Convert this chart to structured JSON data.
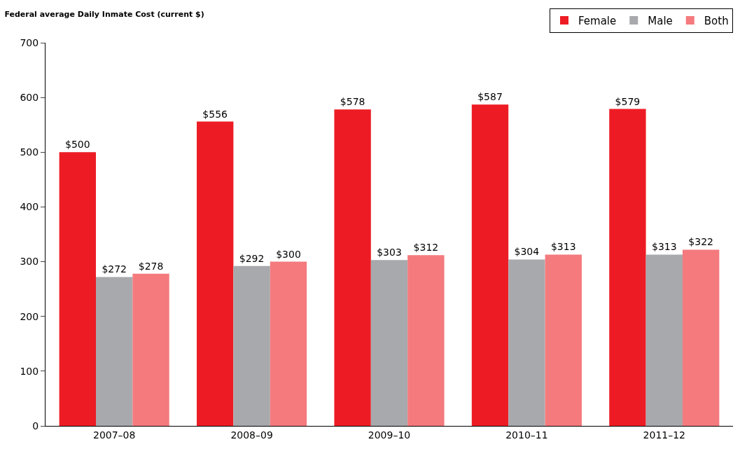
{
  "chart_data": {
    "type": "bar",
    "title": "Federal average Daily Inmate Cost (current $)",
    "categories": [
      "2007–08",
      "2008–09",
      "2009–10",
      "2010–11",
      "2011–12"
    ],
    "series": [
      {
        "name": "Female",
        "color": "#ed1c24",
        "values": [
          500,
          556,
          578,
          587,
          579
        ],
        "value_labels": [
          "$500",
          "$556",
          "$578",
          "$587",
          "$579"
        ]
      },
      {
        "name": "Male",
        "color": "#a7a9ac",
        "values": [
          272,
          292,
          303,
          304,
          313
        ],
        "value_labels": [
          "$272",
          "$292",
          "$303",
          "$304",
          "$313"
        ]
      },
      {
        "name": "Both",
        "color": "#f47a7e",
        "values": [
          278,
          300,
          312,
          313,
          322
        ],
        "value_labels": [
          "$278",
          "$300",
          "$312",
          "$313",
          "$322"
        ]
      }
    ],
    "ylim": [
      0,
      700
    ],
    "yticks": [
      0,
      100,
      200,
      300,
      400,
      500,
      600,
      700
    ],
    "legend": "top right"
  }
}
